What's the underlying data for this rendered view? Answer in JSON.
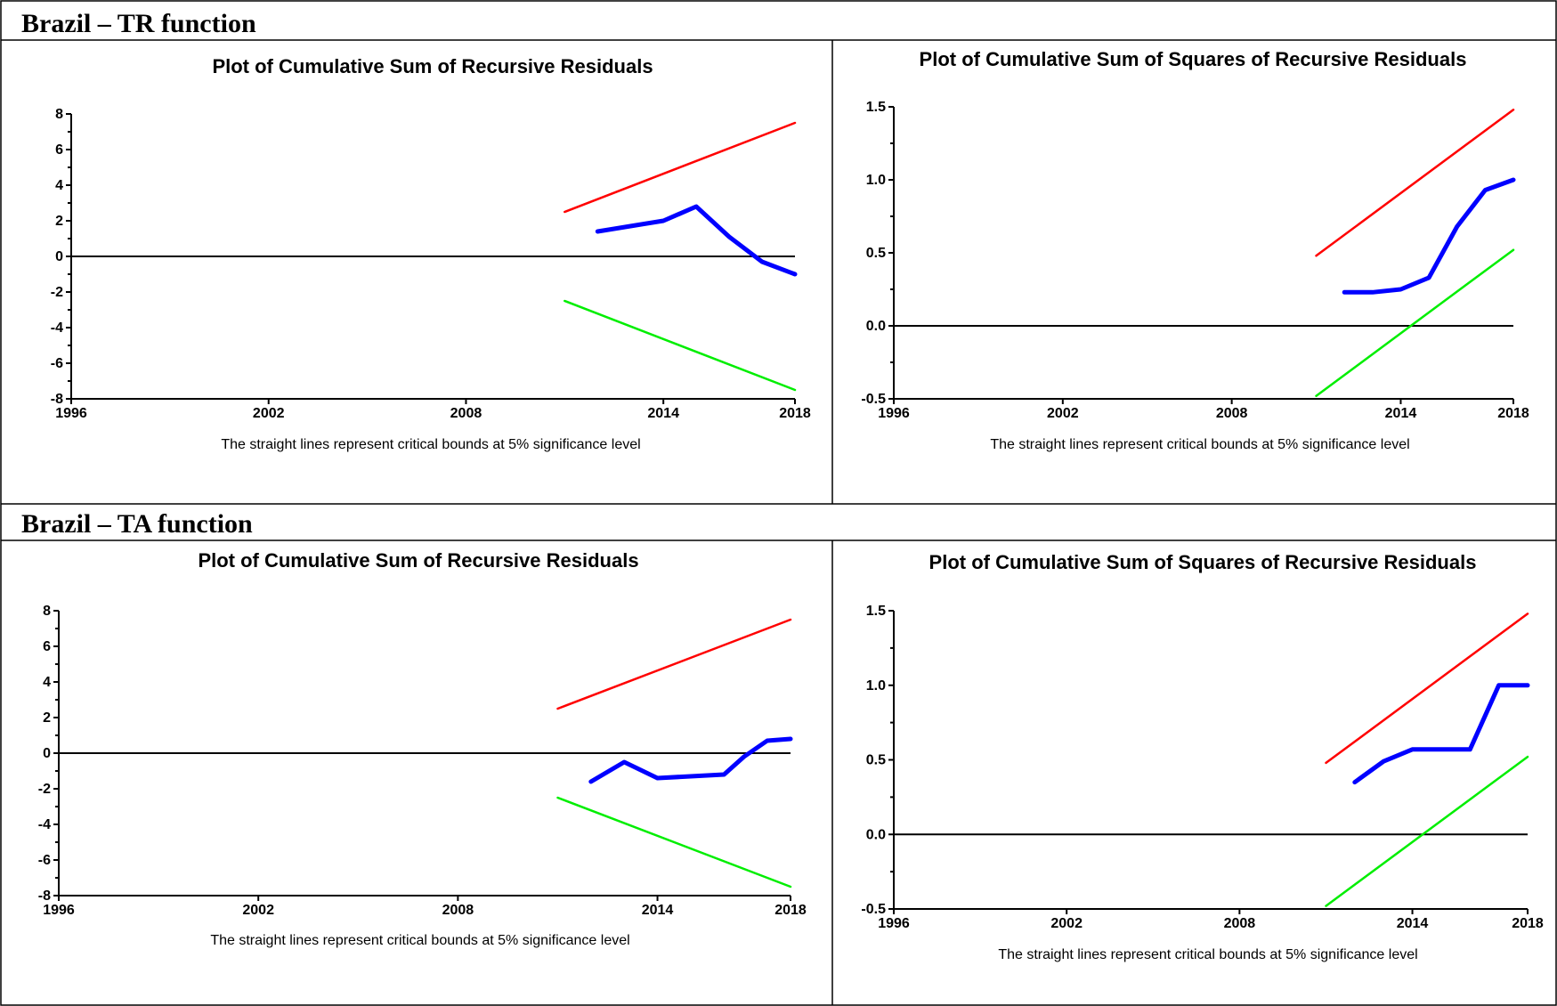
{
  "sections": [
    {
      "title": "Brazil – TR function"
    },
    {
      "title": "Brazil – TA function"
    }
  ],
  "chart_data": [
    {
      "type": "line",
      "title": "Plot of Cumulative Sum of Recursive Residuals",
      "note": "The straight lines represent critical bounds at 5% significance level",
      "xlim": [
        1996,
        2018
      ],
      "ylim": [
        -8,
        8
      ],
      "x_ticks": [
        "1996",
        "2002",
        "2008",
        "2014",
        "2018"
      ],
      "y_ticks": [
        "8",
        "6",
        "4",
        "2",
        "0",
        "-2",
        "-4",
        "-6",
        "-8"
      ],
      "series": [
        {
          "color": "#ff0000",
          "x": [
            2011,
            2018
          ],
          "y": [
            2.5,
            7.5
          ]
        },
        {
          "color": "#00ee00",
          "x": [
            2011,
            2018
          ],
          "y": [
            -2.5,
            -7.5
          ]
        },
        {
          "color": "#0000ff",
          "x": [
            2012,
            2013,
            2014,
            2015,
            2016,
            2017,
            2018
          ],
          "y": [
            1.4,
            1.7,
            2.0,
            2.8,
            1.1,
            -0.3,
            -1.0
          ]
        }
      ],
      "zero_line": 0
    },
    {
      "type": "line",
      "title": "Plot of Cumulative Sum of Squares of Recursive Residuals",
      "note": "The straight lines represent critical bounds at 5% significance level",
      "xlim": [
        1996,
        2018
      ],
      "ylim": [
        -0.5,
        1.5
      ],
      "x_ticks": [
        "1996",
        "2002",
        "2008",
        "2014",
        "2018"
      ],
      "y_ticks": [
        "1.5",
        "1.0",
        "0.5",
        "0.0",
        "-0.5"
      ],
      "series": [
        {
          "color": "#ff0000",
          "x": [
            2011,
            2018
          ],
          "y": [
            0.48,
            1.48
          ]
        },
        {
          "color": "#00ee00",
          "x": [
            2011,
            2018
          ],
          "y": [
            -0.48,
            0.52
          ]
        },
        {
          "color": "#0000ff",
          "x": [
            2012,
            2013,
            2014,
            2015,
            2016,
            2017,
            2018
          ],
          "y": [
            0.23,
            0.23,
            0.25,
            0.33,
            0.68,
            0.93,
            1.0
          ]
        }
      ],
      "zero_line": 0
    },
    {
      "type": "line",
      "title": "Plot of Cumulative Sum of Recursive Residuals",
      "note": "The straight lines represent critical bounds at 5% significance level",
      "xlim": [
        1996,
        2018
      ],
      "ylim": [
        -8,
        8
      ],
      "x_ticks": [
        "1996",
        "2002",
        "2008",
        "2014",
        "2018"
      ],
      "y_ticks": [
        "8",
        "6",
        "4",
        "2",
        "0",
        "-2",
        "-4",
        "-6",
        "-8"
      ],
      "series": [
        {
          "color": "#ff0000",
          "x": [
            2011,
            2018
          ],
          "y": [
            2.5,
            7.5
          ]
        },
        {
          "color": "#00ee00",
          "x": [
            2011,
            2018
          ],
          "y": [
            -2.5,
            -7.5
          ]
        },
        {
          "color": "#0000ff",
          "x": [
            2012,
            2013,
            2014,
            2015,
            2016,
            2016.6,
            2017.3,
            2018
          ],
          "y": [
            -1.6,
            -0.5,
            -1.4,
            -1.3,
            -1.2,
            -0.2,
            0.7,
            0.8
          ]
        }
      ],
      "zero_line": 0
    },
    {
      "type": "line",
      "title": "Plot of Cumulative Sum of Squares of Recursive Residuals",
      "note": "The straight lines represent critical bounds at 5% significance level",
      "xlim": [
        1996,
        2018
      ],
      "ylim": [
        -0.5,
        1.5
      ],
      "x_ticks": [
        "1996",
        "2002",
        "2008",
        "2014",
        "2018"
      ],
      "y_ticks": [
        "1.5",
        "1.0",
        "0.5",
        "0.0",
        "-0.5"
      ],
      "series": [
        {
          "color": "#ff0000",
          "x": [
            2011,
            2018
          ],
          "y": [
            0.48,
            1.48
          ]
        },
        {
          "color": "#00ee00",
          "x": [
            2011,
            2018
          ],
          "y": [
            -0.48,
            0.52
          ]
        },
        {
          "color": "#0000ff",
          "x": [
            2012,
            2013,
            2014,
            2015,
            2016,
            2017,
            2018
          ],
          "y": [
            0.35,
            0.49,
            0.57,
            0.57,
            0.57,
            1.0,
            1.0
          ]
        }
      ],
      "zero_line": 0
    }
  ]
}
